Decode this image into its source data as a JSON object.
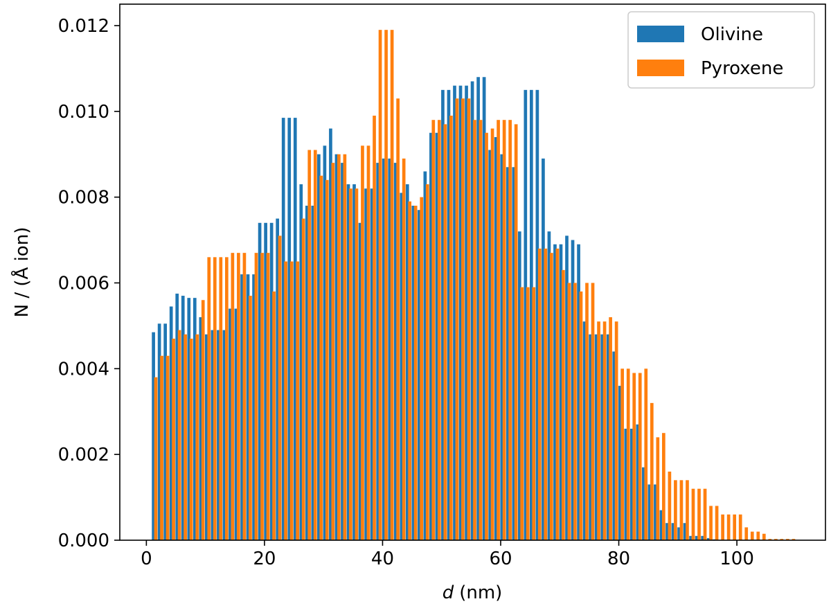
{
  "chart_data": {
    "type": "bar",
    "xlabel": "d",
    "xlabel_unit": "(nm)",
    "ylabel": "N / (Å ion)",
    "xlim": [
      -4.5,
      115
    ],
    "ylim": [
      0,
      0.0125
    ],
    "xticks": [
      0,
      20,
      40,
      60,
      80,
      100
    ],
    "yticks": [
      0.0,
      0.002,
      0.004,
      0.006,
      0.008,
      0.01,
      0.012
    ],
    "ytick_labels": [
      "0.000",
      "0.002",
      "0.004",
      "0.006",
      "0.008",
      "0.010",
      "0.012"
    ],
    "grid": false,
    "legend_position": "top-right",
    "bar_width": 0.55,
    "series": [
      {
        "name": "Olivine",
        "color": "#1f77b4",
        "x": [
          1.2,
          2.2,
          3.2,
          4.2,
          5.2,
          6.2,
          7.2,
          8.2,
          9.2,
          10.2,
          11.2,
          12.2,
          13.2,
          14.2,
          15.2,
          16.2,
          17.2,
          18.2,
          19.2,
          20.2,
          21.2,
          22.2,
          23.2,
          24.2,
          25.2,
          26.2,
          27.2,
          28.2,
          29.2,
          30.2,
          31.2,
          32.2,
          33.2,
          34.2,
          35.2,
          36.2,
          37.2,
          38.2,
          39.2,
          40.2,
          41.2,
          42.2,
          43.2,
          44.2,
          45.2,
          46.2,
          47.2,
          48.2,
          49.2,
          50.2,
          51.2,
          52.2,
          53.2,
          54.2,
          55.2,
          56.2,
          57.2,
          58.2,
          59.2,
          60.2,
          61.2,
          62.2,
          63.2,
          64.2,
          65.2,
          66.2,
          67.2,
          68.2,
          69.2,
          70.2,
          71.2,
          72.2,
          73.2,
          74.2,
          75.2,
          76.2,
          77.2,
          78.2,
          79.2,
          80.2,
          81.2,
          82.2,
          83.2,
          84.2,
          85.2,
          86.2,
          87.2,
          88.2,
          89.2,
          90.2,
          91.2,
          92.2,
          93.2,
          94.2,
          95.2,
          96.2
        ],
        "values": [
          0.00485,
          0.00505,
          0.00505,
          0.00545,
          0.00575,
          0.0057,
          0.00565,
          0.00565,
          0.0052,
          0.0048,
          0.0049,
          0.0049,
          0.0049,
          0.0054,
          0.0054,
          0.0062,
          0.0062,
          0.0062,
          0.0074,
          0.0074,
          0.0074,
          0.0075,
          0.00985,
          0.00985,
          0.00985,
          0.0083,
          0.0078,
          0.0078,
          0.009,
          0.0092,
          0.0096,
          0.009,
          0.0088,
          0.0083,
          0.0083,
          0.0074,
          0.0082,
          0.0082,
          0.0088,
          0.0089,
          0.0089,
          0.0088,
          0.0081,
          0.0083,
          0.0078,
          0.0077,
          0.0086,
          0.0095,
          0.0095,
          0.0105,
          0.0105,
          0.0106,
          0.0106,
          0.0106,
          0.0107,
          0.0108,
          0.0108,
          0.0091,
          0.0094,
          0.009,
          0.0087,
          0.0087,
          0.0072,
          0.0105,
          0.0105,
          0.0105,
          0.0089,
          0.0072,
          0.0069,
          0.0069,
          0.0071,
          0.007,
          0.0069,
          0.0051,
          0.0048,
          0.0048,
          0.0048,
          0.0048,
          0.0044,
          0.0036,
          0.0026,
          0.0026,
          0.0027,
          0.0017,
          0.0013,
          0.0013,
          0.0007,
          0.0004,
          0.0004,
          0.0003,
          0.0004,
          0.0001,
          0.0001,
          0.0001,
          5e-05,
          2e-05
        ]
      },
      {
        "name": "Pyroxene",
        "color": "#ff7f0e",
        "x": [
          1.6,
          2.6,
          3.6,
          4.6,
          5.6,
          6.6,
          7.6,
          8.6,
          9.6,
          10.6,
          11.6,
          12.6,
          13.6,
          14.6,
          15.6,
          16.6,
          17.6,
          18.6,
          19.6,
          20.6,
          21.6,
          22.6,
          23.6,
          24.6,
          25.6,
          26.6,
          27.6,
          28.6,
          29.6,
          30.6,
          31.6,
          32.6,
          33.6,
          34.6,
          35.6,
          36.6,
          37.6,
          38.6,
          39.6,
          40.6,
          41.6,
          42.6,
          43.6,
          44.6,
          45.6,
          46.6,
          47.6,
          48.6,
          49.6,
          50.6,
          51.6,
          52.6,
          53.6,
          54.6,
          55.6,
          56.6,
          57.6,
          58.6,
          59.6,
          60.6,
          61.6,
          62.6,
          63.6,
          64.6,
          65.6,
          66.6,
          67.6,
          68.6,
          69.6,
          70.6,
          71.6,
          72.6,
          73.6,
          74.6,
          75.6,
          76.6,
          77.6,
          78.6,
          79.6,
          80.6,
          81.6,
          82.6,
          83.6,
          84.6,
          85.6,
          86.6,
          87.6,
          88.6,
          89.6,
          90.6,
          91.6,
          92.6,
          93.6,
          94.6,
          95.6,
          96.6,
          97.6,
          98.6,
          99.6,
          100.6,
          101.6,
          102.6,
          103.6,
          104.6,
          105.6,
          106.6,
          107.6,
          108.6,
          109.6
        ],
        "values": [
          0.0038,
          0.0043,
          0.0043,
          0.0047,
          0.0049,
          0.0048,
          0.0047,
          0.0048,
          0.0056,
          0.0066,
          0.0066,
          0.0066,
          0.0066,
          0.0067,
          0.0067,
          0.0067,
          0.0057,
          0.0067,
          0.0067,
          0.0067,
          0.0058,
          0.0071,
          0.0065,
          0.0065,
          0.0065,
          0.0075,
          0.0091,
          0.0091,
          0.0085,
          0.0084,
          0.0088,
          0.009,
          0.009,
          0.0082,
          0.0082,
          0.0092,
          0.0092,
          0.0099,
          0.0119,
          0.0119,
          0.0119,
          0.0103,
          0.0089,
          0.0079,
          0.0078,
          0.008,
          0.0083,
          0.0098,
          0.0098,
          0.0097,
          0.0099,
          0.0103,
          0.0103,
          0.0103,
          0.0098,
          0.0098,
          0.0095,
          0.0096,
          0.0098,
          0.0098,
          0.0098,
          0.0097,
          0.0059,
          0.0059,
          0.0059,
          0.0068,
          0.0068,
          0.0067,
          0.0068,
          0.0063,
          0.006,
          0.006,
          0.0058,
          0.006,
          0.006,
          0.0051,
          0.0051,
          0.0052,
          0.0051,
          0.004,
          0.004,
          0.0039,
          0.0039,
          0.004,
          0.0032,
          0.0024,
          0.0025,
          0.0016,
          0.0014,
          0.0014,
          0.0014,
          0.0012,
          0.0012,
          0.0012,
          0.0008,
          0.0008,
          0.0006,
          0.0006,
          0.0006,
          0.0006,
          0.0003,
          0.0002,
          0.0002,
          0.00015,
          3e-05,
          3e-05,
          3e-05,
          3e-05,
          3e-05
        ]
      }
    ]
  }
}
